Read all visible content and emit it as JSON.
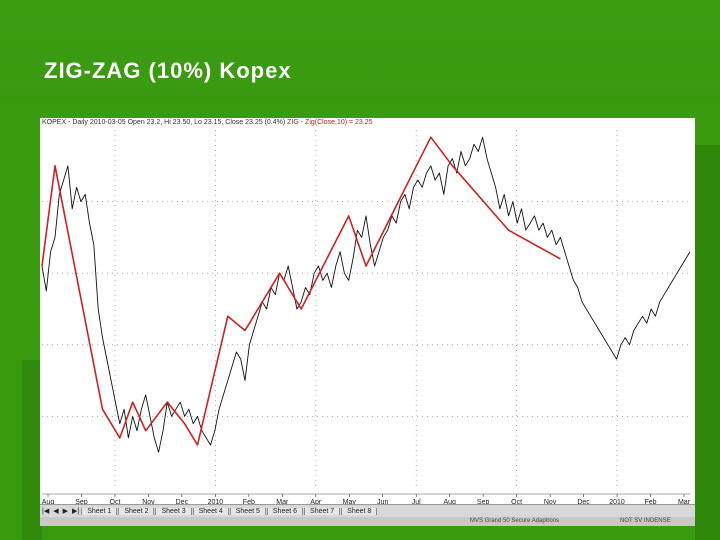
{
  "slide": {
    "title": "ZIG-ZAG (10%) Kopex"
  },
  "header": {
    "text": "KOPEX - Daily 2010-03-05 Open 23.2, Hi 23.50, Lo 23.15, Close 23.25 (0.4%)",
    "zigzag": "ZIG - Zig(Close,10) = 23.25"
  },
  "tabs": {
    "nav": [
      "|◀",
      "◀",
      "▶",
      "▶|"
    ],
    "sheets": [
      "Sheet 1",
      "Sheet 2",
      "Sheet 3",
      "Sheet 4",
      "Sheet 5",
      "Sheet 6",
      "Sheet 7",
      "Sheet 8"
    ]
  },
  "status": {
    "left": "MVS Grand 50 Secure Adaptrons",
    "right": "NOT SV INDENSE"
  },
  "colors": {
    "price": "#111111",
    "zigzag": "#cc2222",
    "background": "#3a9a10"
  },
  "chart_data": {
    "type": "line",
    "title": "KOPEX - Daily",
    "x_ticks": [
      "Aug",
      "Sep",
      "Oct",
      "Nov",
      "Dec",
      "2010",
      "Feb",
      "Mar",
      "Apr",
      "May",
      "Jun",
      "Jul",
      "Aug",
      "Sep",
      "Oct",
      "Nov",
      "Dec",
      "2010",
      "Feb",
      "Mar"
    ],
    "ylim": [
      0,
      100
    ],
    "grid": true,
    "series": [
      {
        "name": "Close",
        "x": [
          0,
          2,
          4,
          6,
          8,
          10,
          12,
          14,
          16,
          18,
          20,
          22,
          24,
          26,
          28,
          30,
          32,
          34,
          36,
          38,
          40,
          42,
          44,
          46,
          48,
          50,
          52,
          54,
          56,
          58,
          60,
          62,
          64,
          66,
          68,
          70,
          72,
          74,
          76,
          78,
          80,
          82,
          84,
          86,
          88,
          90,
          92,
          94,
          96,
          98,
          100,
          102,
          104,
          106,
          108,
          110,
          112,
          114,
          116,
          118,
          120,
          122,
          124,
          126,
          128,
          130,
          132,
          134,
          136,
          138,
          140,
          142,
          144,
          146,
          148,
          150,
          152,
          154,
          156,
          158,
          160,
          162,
          164,
          166,
          168,
          170,
          172,
          174,
          176,
          178,
          180,
          182,
          184,
          186,
          188,
          190,
          192,
          194,
          196,
          198,
          200,
          202,
          204,
          206,
          208,
          210,
          212,
          214,
          216,
          218,
          220,
          222,
          224,
          226,
          228,
          230,
          232,
          234,
          236,
          238,
          240,
          242,
          244,
          246,
          248,
          250,
          252,
          254,
          256,
          258,
          260,
          262,
          264,
          266,
          268,
          270,
          272,
          274,
          276,
          278,
          280,
          282,
          284,
          286,
          288,
          290,
          292,
          294,
          296,
          298,
          300
        ],
        "y": [
          62,
          55,
          66,
          70,
          82,
          86,
          90,
          78,
          84,
          80,
          82,
          74,
          68,
          50,
          42,
          36,
          30,
          24,
          18,
          22,
          14,
          20,
          16,
          22,
          26,
          20,
          14,
          10,
          16,
          24,
          20,
          22,
          24,
          20,
          22,
          18,
          20,
          16,
          14,
          12,
          16,
          22,
          26,
          30,
          34,
          38,
          36,
          30,
          40,
          44,
          48,
          52,
          50,
          56,
          54,
          60,
          58,
          62,
          56,
          50,
          52,
          56,
          54,
          60,
          62,
          58,
          60,
          56,
          62,
          66,
          60,
          58,
          64,
          72,
          70,
          76,
          68,
          62,
          66,
          70,
          72,
          76,
          74,
          80,
          82,
          78,
          84,
          86,
          84,
          88,
          90,
          86,
          88,
          82,
          90,
          92,
          88,
          94,
          90,
          92,
          96,
          94,
          98,
          92,
          88,
          84,
          78,
          82,
          76,
          80,
          74,
          78,
          72,
          74,
          76,
          72,
          74,
          70,
          72,
          68,
          70,
          66,
          62,
          58,
          56,
          52,
          50,
          48,
          46,
          44,
          42,
          40,
          38,
          36,
          40,
          42,
          40,
          44,
          46,
          48,
          46,
          50,
          48,
          52,
          54,
          56,
          58,
          60,
          62,
          64,
          66
        ],
        "values_note": ""
      },
      {
        "name": "ZIG - Zig(Close,10)",
        "x": [
          0,
          6,
          28,
          36,
          42,
          48,
          58,
          66,
          72,
          86,
          94,
          110,
          120,
          142,
          150,
          180,
          190,
          216,
          240
        ],
        "y": [
          62,
          90,
          22,
          14,
          24,
          16,
          24,
          18,
          12,
          48,
          44,
          60,
          50,
          76,
          62,
          98,
          90,
          72,
          64
        ]
      }
    ]
  }
}
